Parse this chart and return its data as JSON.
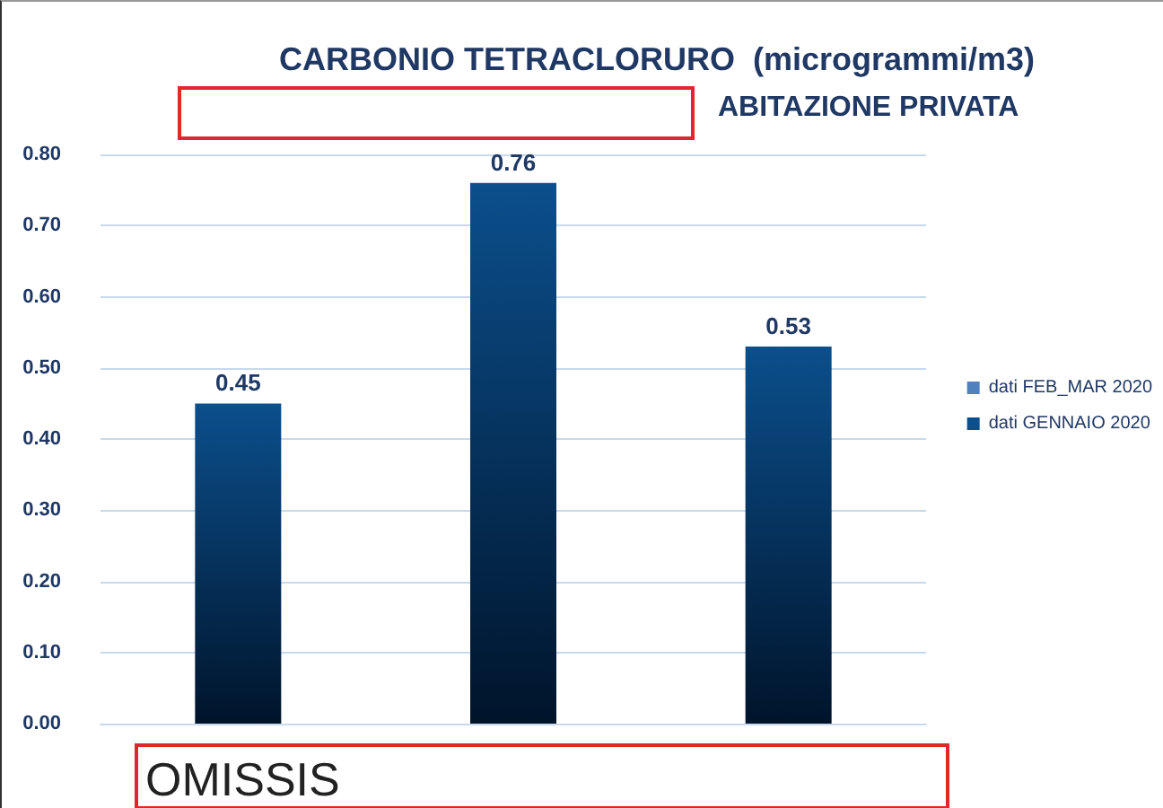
{
  "chart_data": {
    "type": "bar",
    "title": "CARBONIO TETRACLORURO  (microgrammi/m3)",
    "subtitle": "ABITAZIONE PRIVATA",
    "categories": [
      null,
      null,
      null
    ],
    "series": [
      {
        "name": "dati FEB_MAR 2020",
        "color": "#4f81bd",
        "values": [
          null,
          null,
          null
        ]
      },
      {
        "name": "dati GENNAIO 2020",
        "color": "#0b4f8c",
        "values": [
          0.45,
          0.76,
          0.53
        ]
      }
    ],
    "ylim": [
      0,
      0.8
    ],
    "yticks": [
      {
        "value": 0,
        "label": "0.00"
      },
      {
        "value": 0.1,
        "label": "0.10"
      },
      {
        "value": 0.2,
        "label": "0.20"
      },
      {
        "value": 0.3,
        "label": "0.30"
      },
      {
        "value": 0.4,
        "label": "0.40"
      },
      {
        "value": 0.5,
        "label": "0.50"
      },
      {
        "value": 0.6,
        "label": "0.60"
      },
      {
        "value": 0.7,
        "label": "0.70"
      },
      {
        "value": 0.8,
        "label": "0.80"
      }
    ],
    "grid": "y",
    "legend": "right",
    "data_labels": true,
    "annotations": [
      "OMISSIS"
    ]
  }
}
